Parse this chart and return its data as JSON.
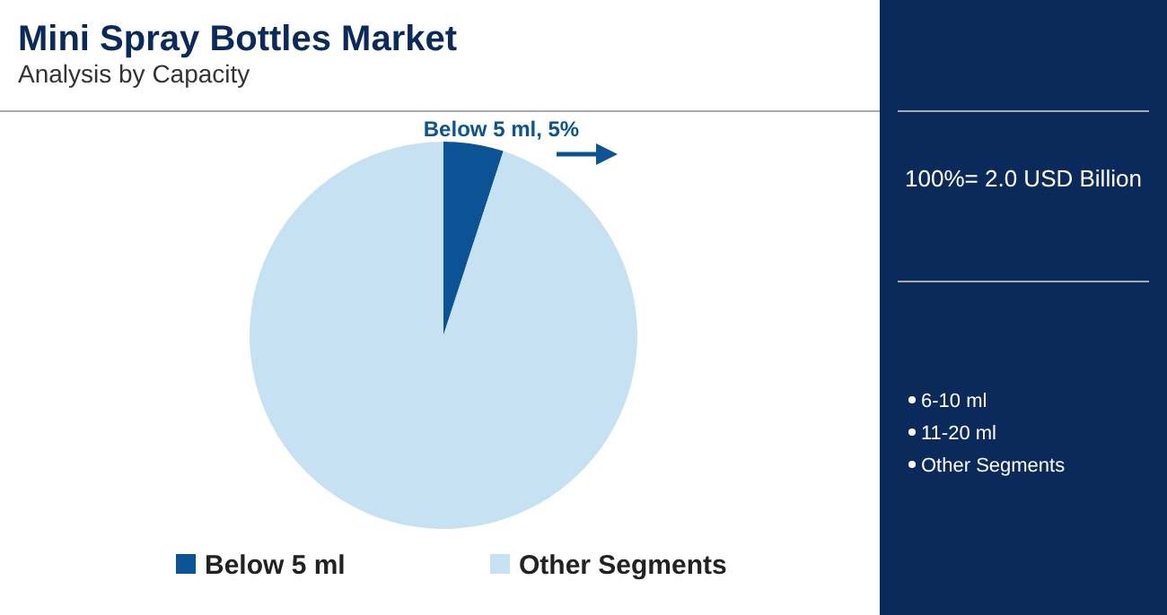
{
  "chart_data": {
    "type": "pie",
    "title": "Mini Spray Bottles Market",
    "subtitle": "Analysis by Capacity",
    "categories": [
      "Below 5 ml",
      "Other Segments"
    ],
    "values": [
      5,
      95
    ],
    "colors": [
      "#0b5394",
      "#c6e2f2"
    ],
    "value_labels": [
      "Below 5 ml, 5%",
      null
    ],
    "legend": "bottom",
    "annotations": [
      "100%= 2.0 USD Billion",
      "6-10 ml",
      "11-20 ml",
      "Other Segments"
    ]
  }
}
